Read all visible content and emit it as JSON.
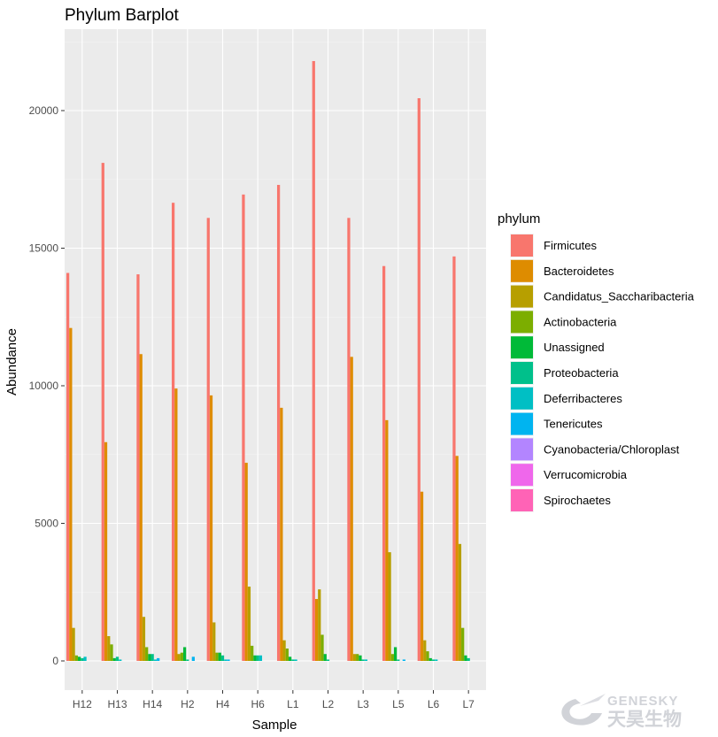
{
  "chart_data": {
    "type": "bar",
    "title": "Phylum Barplot",
    "xlabel": "Sample",
    "ylabel": "Abundance",
    "ylim": [
      -1000,
      22500
    ],
    "yticks": [
      0,
      5000,
      10000,
      15000,
      20000
    ],
    "grid": true,
    "legend_placement": "right",
    "legend_title": "phylum",
    "categories": [
      "H12",
      "H13",
      "H14",
      "H2",
      "H4",
      "H6",
      "L1",
      "L2",
      "L3",
      "L5",
      "L6",
      "L7"
    ],
    "series": [
      {
        "name": "Firmicutes",
        "color": "#F8766D",
        "values": [
          14100,
          18100,
          14050,
          16650,
          16100,
          16950,
          17300,
          21800,
          16100,
          14350,
          20450,
          14700
        ]
      },
      {
        "name": "Bacteroidetes",
        "color": "#DE8C00",
        "values": [
          12100,
          7950,
          11150,
          9900,
          9650,
          7200,
          9200,
          2250,
          11050,
          8750,
          6150,
          7450
        ]
      },
      {
        "name": "Candidatus_Saccharibacteria",
        "color": "#B79F00",
        "values": [
          1200,
          900,
          1600,
          250,
          1400,
          2700,
          750,
          2600,
          250,
          3950,
          750,
          4250
        ]
      },
      {
        "name": "Actinobacteria",
        "color": "#7CAE00",
        "values": [
          200,
          600,
          500,
          300,
          300,
          550,
          450,
          950,
          250,
          250,
          350,
          1200
        ]
      },
      {
        "name": "Unassigned",
        "color": "#00BA38",
        "values": [
          150,
          100,
          250,
          500,
          300,
          200,
          150,
          250,
          200,
          500,
          100,
          200
        ]
      },
      {
        "name": "Proteobacteria",
        "color": "#00C08B",
        "values": [
          100,
          150,
          250,
          50,
          200,
          200,
          50,
          50,
          50,
          50,
          50,
          100
        ]
      },
      {
        "name": "Deferribacteres",
        "color": "#00BFC4",
        "values": [
          150,
          50,
          50,
          0,
          50,
          200,
          50,
          0,
          50,
          0,
          50,
          0
        ]
      },
      {
        "name": "Tenericutes",
        "color": "#00B4F0",
        "values": [
          0,
          0,
          100,
          150,
          50,
          0,
          0,
          0,
          0,
          50,
          0,
          0
        ]
      },
      {
        "name": "Cyanobacteria/Chloroplast",
        "color": "#B385FF",
        "values": [
          0,
          0,
          0,
          0,
          0,
          0,
          0,
          0,
          0,
          0,
          0,
          0
        ]
      },
      {
        "name": "Verrucomicrobia",
        "color": "#EF67EB",
        "values": [
          0,
          0,
          0,
          0,
          0,
          0,
          0,
          0,
          0,
          0,
          0,
          0
        ]
      },
      {
        "name": "Spirochaetes",
        "color": "#FF63B6",
        "values": [
          0,
          0,
          0,
          0,
          0,
          0,
          0,
          0,
          0,
          0,
          0,
          0
        ]
      }
    ]
  },
  "watermark": {
    "brand_en": "GENESKY",
    "brand_cn": "天昊生物"
  },
  "colors": {
    "panel": "#EBEBEB",
    "grid_major": "#FFFFFF",
    "grid_minor": "#F5F5F5"
  }
}
